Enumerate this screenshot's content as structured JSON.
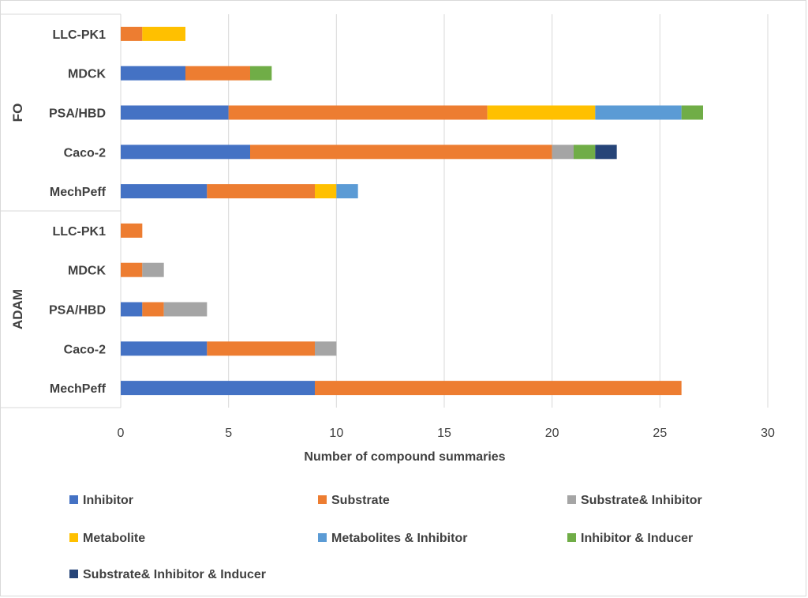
{
  "chart_data": {
    "type": "bar",
    "orientation": "horizontal",
    "stacked": true,
    "xlabel": "Number of compound summaries",
    "xlim": [
      0,
      30
    ],
    "xticks": [
      0,
      5,
      10,
      15,
      20,
      25,
      30
    ],
    "grid": true,
    "legend_position": "bottom",
    "groups": [
      {
        "label": "FO",
        "categories": [
          "LLC-PK1",
          "MDCK",
          "PSA/HBD",
          "Caco-2",
          "MechPeff"
        ]
      },
      {
        "label": "ADAM",
        "categories": [
          "LLC-PK1",
          "MDCK",
          "PSA/HBD",
          "Caco-2",
          "MechPeff"
        ]
      }
    ],
    "series": [
      {
        "name": "Inhibitor",
        "color": "#4472C4",
        "values": [
          0,
          3,
          5,
          6,
          4,
          0,
          0,
          1,
          4,
          9
        ]
      },
      {
        "name": "Substrate",
        "color": "#ED7D31",
        "values": [
          1,
          3,
          12,
          14,
          5,
          1,
          1,
          1,
          5,
          17
        ]
      },
      {
        "name": "Substrate& Inhibitor",
        "color": "#A5A5A5",
        "values": [
          0,
          0,
          0,
          1,
          0,
          0,
          1,
          2,
          1,
          0
        ]
      },
      {
        "name": "Metabolite",
        "color": "#FFC000",
        "values": [
          2,
          0,
          5,
          0,
          1,
          0,
          0,
          0,
          0,
          0
        ]
      },
      {
        "name": "Metabolites & Inhibitor",
        "color": "#5B9BD5",
        "values": [
          0,
          0,
          4,
          0,
          1,
          0,
          0,
          0,
          0,
          0
        ]
      },
      {
        "name": "Inhibitor & Inducer",
        "color": "#70AD47",
        "values": [
          0,
          1,
          1,
          1,
          0,
          0,
          0,
          0,
          0,
          0
        ]
      },
      {
        "name": "Substrate& Inhibitor & Inducer",
        "color": "#264478",
        "values": [
          0,
          0,
          0,
          1,
          0,
          0,
          0,
          0,
          0,
          0
        ]
      }
    ]
  }
}
